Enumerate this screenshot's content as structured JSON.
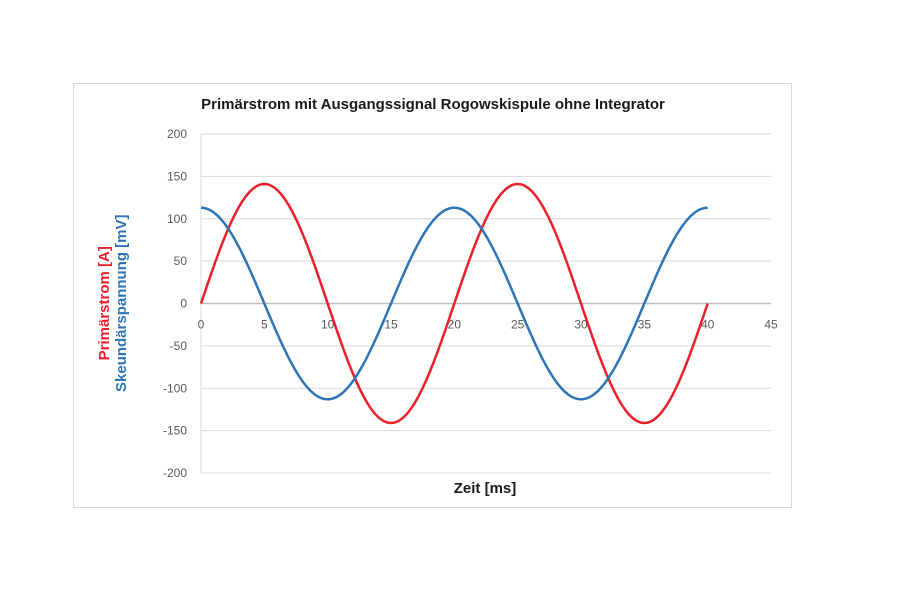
{
  "chart": {
    "title": "Primärstrom mit Ausgangssignal Rogowskispule ohne Integrator",
    "xlabel": "Zeit [ms]",
    "ylabel_primary": "Primärstrom [A]",
    "ylabel_secondary": "Skeundärspannung [mV]",
    "colors": {
      "primary": "#e8202a",
      "secondary": "#2e75b6",
      "grid": "#d9d9d9",
      "axis": "#bfbfbf"
    }
  },
  "chart_data": {
    "type": "line",
    "title": "Primärstrom mit Ausgangssignal Rogowskispule ohne Integrator",
    "xlabel": "Zeit [ms]",
    "ylabel": "Primärstrom [A] / Skeundärspannung [mV]",
    "xlim": [
      0,
      45
    ],
    "ylim": [
      -200,
      200
    ],
    "xticks": [
      0,
      5,
      10,
      15,
      20,
      25,
      30,
      35,
      40,
      45
    ],
    "yticks": [
      200,
      150,
      100,
      50,
      0,
      -50,
      -100,
      -150,
      -200
    ],
    "grid": {
      "horizontal": true,
      "vertical": false
    },
    "legend": "none (colored axis labels)",
    "x": [
      0,
      2.5,
      5,
      7.5,
      10,
      12.5,
      15,
      17.5,
      20,
      22.5,
      25,
      27.5,
      30,
      32.5,
      35,
      37.5,
      40
    ],
    "series": [
      {
        "name": "Primärstrom [A]",
        "color": "#e8202a",
        "values": [
          0,
          100,
          141,
          100,
          0,
          -100,
          -141,
          -100,
          0,
          100,
          141,
          100,
          0,
          -100,
          -141,
          -100,
          0
        ]
      },
      {
        "name": "Skeundärspannung [mV]",
        "color": "#2e75b6",
        "values": [
          113,
          80,
          0,
          -80,
          -113,
          -80,
          0,
          80,
          113,
          80,
          0,
          -80,
          -113,
          -80,
          0,
          80,
          113
        ]
      }
    ]
  }
}
